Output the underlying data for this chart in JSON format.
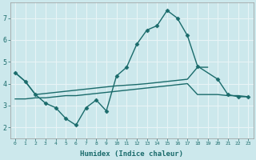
{
  "x": [
    0,
    1,
    2,
    3,
    4,
    5,
    6,
    7,
    8,
    9,
    10,
    11,
    12,
    13,
    14,
    15,
    16,
    17,
    18,
    19,
    20,
    21,
    22,
    23
  ],
  "line1_x": [
    0,
    1,
    2,
    3,
    4,
    5,
    6,
    7,
    8,
    9,
    10,
    11,
    12,
    13,
    14,
    15,
    16,
    17,
    18,
    20,
    21,
    22,
    23
  ],
  "line1_y": [
    4.5,
    4.1,
    3.5,
    3.1,
    2.9,
    2.4,
    2.1,
    2.9,
    3.25,
    2.75,
    4.35,
    4.75,
    5.8,
    6.45,
    6.65,
    7.35,
    7.0,
    6.2,
    4.8,
    4.2,
    3.5,
    3.4,
    3.4
  ],
  "line2_x": [
    0,
    1,
    2,
    3,
    4,
    5,
    6,
    7,
    8,
    9,
    10,
    11,
    12,
    13,
    14,
    15,
    16,
    17,
    18,
    19
  ],
  "line2_y": [
    4.5,
    4.1,
    3.5,
    3.55,
    3.6,
    3.65,
    3.7,
    3.75,
    3.8,
    3.85,
    3.9,
    3.93,
    3.96,
    4.0,
    4.05,
    4.1,
    4.15,
    4.2,
    4.75,
    4.75
  ],
  "line3_x": [
    0,
    1,
    2,
    3,
    4,
    5,
    6,
    7,
    8,
    9,
    10,
    11,
    12,
    13,
    14,
    15,
    16,
    17,
    18,
    19,
    20,
    21,
    22,
    23
  ],
  "line3_y": [
    3.3,
    3.3,
    3.35,
    3.35,
    3.4,
    3.45,
    3.45,
    3.5,
    3.55,
    3.6,
    3.65,
    3.7,
    3.75,
    3.8,
    3.85,
    3.9,
    3.95,
    4.0,
    3.5,
    3.5,
    3.5,
    3.45,
    3.45,
    3.4
  ],
  "xlabel": "Humidex (Indice chaleur)",
  "ylim": [
    1.5,
    7.7
  ],
  "xlim": [
    -0.5,
    23.5
  ],
  "bg_color": "#cce8ec",
  "grid_color": "#e8f4f6",
  "line_color": "#1a6b6b",
  "marker": "D",
  "marker_size": 2.5,
  "linewidth": 1.0
}
